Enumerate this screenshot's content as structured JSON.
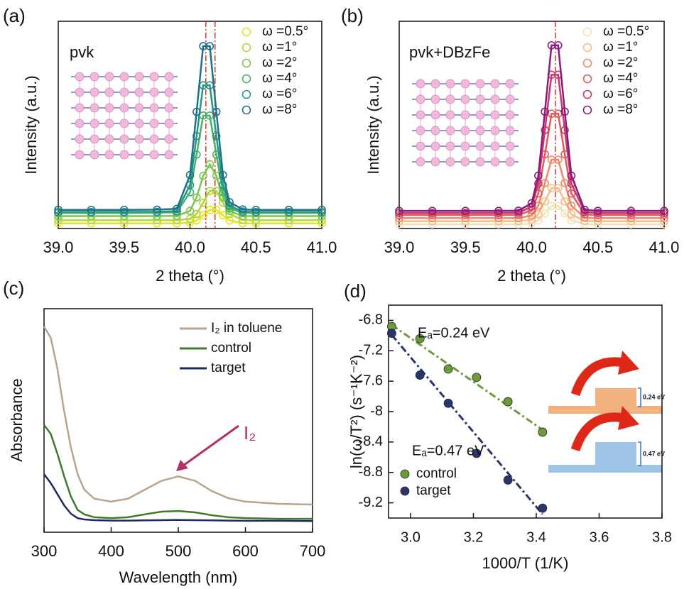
{
  "chart_data": [
    {
      "type": "line",
      "panel": "(a)",
      "sample": "pvk",
      "x_label": "2 theta (°)",
      "y_label": "Intensity (a.u.)",
      "markers": true,
      "x": [
        39.0,
        39.25,
        39.5,
        39.75,
        39.9,
        40.0,
        40.05,
        40.1,
        40.15,
        40.2,
        40.25,
        40.3,
        40.4,
        40.5,
        40.75,
        41.0
      ],
      "series": [
        {
          "name": "ω =0.5°",
          "color": "#e3e31c",
          "values": [
            2.5,
            2.5,
            2.5,
            2.5,
            2.5,
            2.8,
            3.9,
            6.4,
            9,
            9,
            6.4,
            3.9,
            2.5,
            2.5,
            2.5,
            2.5
          ]
        },
        {
          "name": "ω =1°",
          "color": "#b3d53a",
          "values": [
            4,
            4,
            4,
            4,
            4,
            4.7,
            7,
            12.4,
            18.1,
            18.1,
            12.4,
            7,
            4.1,
            4,
            4,
            4
          ]
        },
        {
          "name": "ω =2°",
          "color": "#7cc64d",
          "values": [
            6,
            6,
            6,
            6,
            6.1,
            8.5,
            15,
            25.4,
            31,
            25.4,
            15,
            8.5,
            6,
            6,
            6,
            6
          ]
        },
        {
          "name": "ω =4°",
          "color": "#45b36b",
          "values": [
            7.5,
            7.5,
            7.5,
            7.6,
            7.8,
            17.5,
            35.7,
            54.5,
            54.5,
            35.7,
            17.5,
            9.7,
            7.6,
            7.5,
            7.5,
            7.5
          ]
        },
        {
          "name": "ω =6°",
          "color": "#25977f",
          "values": [
            8,
            8,
            8,
            8.1,
            8.4,
            21,
            44.6,
            69.1,
            69.1,
            44.6,
            21,
            10.9,
            8.2,
            8,
            8,
            8
          ]
        },
        {
          "name": "ω =8°",
          "color": "#1d718a",
          "values": [
            9,
            9,
            9,
            9.1,
            9.5,
            25.8,
            56.3,
            88,
            88,
            56.3,
            25.8,
            12.7,
            9.2,
            9,
            9,
            9
          ]
        }
      ],
      "ref_lines": [
        40.12,
        40.19
      ],
      "ref_color": "#e0302a",
      "xlim": [
        39,
        41
      ],
      "ylim": [
        0,
        100
      ],
      "xticks": [
        {
          "value": 39,
          "label": "39.0"
        },
        39.5,
        {
          "value": 40,
          "label": "40.0"
        },
        40.5,
        {
          "value": 41,
          "label": "41.0"
        }
      ]
    },
    {
      "type": "line",
      "panel": "(b)",
      "sample": "pvk+DBzFe",
      "x_label": "2 theta (°)",
      "y_label": "Intensity (a.u.)",
      "markers": true,
      "x": [
        39.0,
        39.25,
        39.5,
        39.75,
        39.9,
        40.0,
        40.05,
        40.1,
        40.15,
        40.2,
        40.25,
        40.3,
        40.4,
        40.5,
        40.75,
        41.0
      ],
      "series": [
        {
          "name": "ω =0.5°",
          "color": "#f3e2b4",
          "values": [
            2,
            2,
            2,
            2,
            2,
            2.4,
            3.9,
            7.3,
            10.9,
            10.9,
            7.3,
            3.9,
            2.1,
            2,
            2,
            2
          ]
        },
        {
          "name": "ω =1°",
          "color": "#f5bd89",
          "values": [
            3.5,
            3.5,
            3.5,
            3.5,
            3.5,
            4.2,
            6.9,
            13.1,
            19.5,
            19.5,
            13.1,
            6.9,
            3.6,
            3.5,
            3.5,
            3.5
          ]
        },
        {
          "name": "ω =2°",
          "color": "#ef8a68",
          "values": [
            5,
            5,
            5,
            5,
            5,
            6.3,
            11,
            21.9,
            33.2,
            33.2,
            21.9,
            11,
            5.2,
            5,
            5,
            5
          ]
        },
        {
          "name": "ω =4°",
          "color": "#e2585c",
          "values": [
            6.5,
            6.5,
            6.5,
            6.5,
            6.6,
            8.8,
            16.9,
            35.8,
            55.4,
            55.4,
            35.8,
            16.9,
            6.8,
            6.5,
            6.5,
            6.5
          ]
        },
        {
          "name": "ω =6°",
          "color": "#c4386e",
          "values": [
            7.5,
            7.5,
            7.5,
            7.5,
            7.6,
            10.6,
            21.7,
            47.5,
            74.2,
            74.2,
            47.5,
            21.7,
            7.9,
            7.5,
            7.5,
            7.5
          ]
        },
        {
          "name": "ω =8°",
          "color": "#8c1a7e",
          "values": [
            8.5,
            8.5,
            8.5,
            8.5,
            8.6,
            12.2,
            25.5,
            56.4,
            88.4,
            88.4,
            56.4,
            25.5,
            9,
            8.5,
            8.5,
            8.5
          ]
        }
      ],
      "ref_lines": [
        40.18
      ],
      "ref_color": "#e0302a",
      "xlim": [
        39,
        41
      ],
      "ylim": [
        0,
        100
      ],
      "xticks": [
        {
          "value": 39,
          "label": "39.0"
        },
        39.5,
        {
          "value": 40,
          "label": "40.0"
        },
        40.5,
        {
          "value": 41,
          "label": "41.0"
        }
      ]
    },
    {
      "type": "line",
      "panel": "(c)",
      "x_label": "Wavelength (nm)",
      "y_label": "Absorbance",
      "markers": false,
      "x": [
        300,
        310,
        320,
        330,
        340,
        350,
        360,
        375,
        400,
        425,
        450,
        475,
        500,
        525,
        550,
        575,
        600,
        650,
        700
      ],
      "series": [
        {
          "name": "I₂ in toluene",
          "color": "#b9a48e",
          "values": [
            92,
            87,
            73,
            54,
            38,
            26,
            19,
            15,
            13.7,
            15,
            19,
            23,
            25,
            23,
            18.4,
            15.2,
            13.7,
            12.7,
            12.4
          ]
        },
        {
          "name": "control",
          "color": "#3e7a28",
          "values": [
            48,
            44,
            35,
            25,
            16,
            10,
            8,
            6.7,
            6.3,
            6.7,
            8,
            9.2,
            9.5,
            8.9,
            7.6,
            6.7,
            6.3,
            6,
            6
          ]
        },
        {
          "name": "target",
          "color": "#1e2a68",
          "values": [
            26,
            22,
            17,
            12,
            8.3,
            6.3,
            5.7,
            5.4,
            5.2,
            5.2,
            5.3,
            5.4,
            5.5,
            5.4,
            5.3,
            5.2,
            5.1,
            5.1,
            5
          ]
        }
      ],
      "annotations": [
        {
          "text": "I₂",
          "color": "#b0306a"
        }
      ],
      "xlim": [
        300,
        700
      ],
      "ylim": [
        0,
        100
      ],
      "xticks": [
        300,
        400,
        500,
        600,
        700
      ]
    },
    {
      "type": "scatter",
      "panel": "(d)",
      "x_label": "1000/T (1/K)",
      "y_label": "ln(ω/T²) (s⁻¹K⁻²)",
      "x": [
        2.94,
        3.03,
        3.12,
        3.21,
        3.31,
        3.42
      ],
      "series": [
        {
          "name": "control",
          "color": "#6e9b3a",
          "values": [
            -6.88,
            -7.04,
            -7.44,
            -7.55,
            -7.87,
            -8.27
          ],
          "fit": {
            "x": [
              2.94,
              3.42
            ],
            "values": [
              -6.86,
              -8.24
            ]
          }
        },
        {
          "name": "target",
          "color": "#2a356e",
          "values": [
            -6.97,
            -7.52,
            -7.89,
            -8.55,
            -8.9,
            -9.27
          ],
          "fit": {
            "x": [
              2.94,
              3.42
            ],
            "values": [
              -6.99,
              -9.35
            ]
          }
        }
      ],
      "annotations": [
        {
          "text": "Eₐ=0.24 eV"
        },
        {
          "text": "Eₐ=0.47 eV"
        }
      ],
      "inset_labels": [
        "0.24 eV",
        "0.47 eV"
      ],
      "xlim": [
        2.93,
        3.8
      ],
      "ylim": [
        -9.4,
        -6.6
      ],
      "xticks": [
        {
          "value": 3,
          "label": "3.0"
        },
        3.2,
        3.4,
        3.6,
        3.8
      ],
      "yticks": [
        -6.8,
        -7.2,
        -7.6,
        -8.0,
        -8.4,
        -8.8,
        -9.2
      ]
    }
  ]
}
